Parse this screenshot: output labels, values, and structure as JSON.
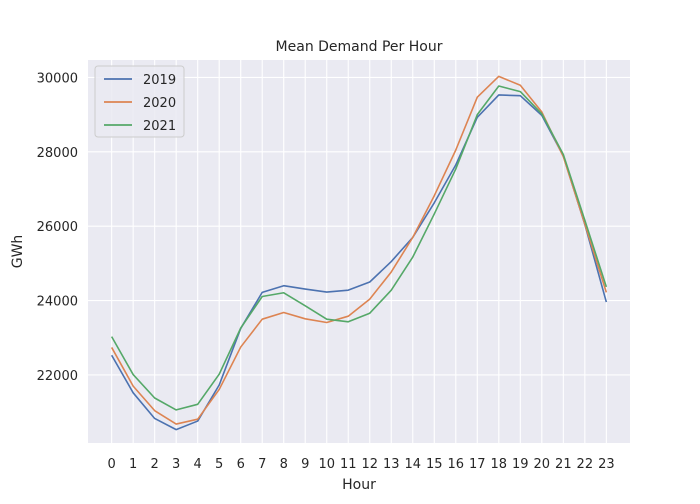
{
  "chart_data": {
    "type": "line",
    "title": "Mean Demand Per Hour",
    "xlabel": "Hour",
    "ylabel": "GWh",
    "x": [
      0,
      1,
      2,
      3,
      4,
      5,
      6,
      7,
      8,
      9,
      10,
      11,
      12,
      13,
      14,
      15,
      16,
      17,
      18,
      19,
      20,
      21,
      22,
      23
    ],
    "y_ticks": [
      22000,
      24000,
      26000,
      28000,
      30000
    ],
    "ylim": [
      20170,
      30470
    ],
    "xlim": [
      -1.1,
      24.1
    ],
    "grid": true,
    "legend_position": "top-left",
    "background_color": "#eaeaf2",
    "series": [
      {
        "name": "2019",
        "color": "#4c72b0",
        "values": [
          22530,
          21520,
          20830,
          20530,
          20760,
          21730,
          23250,
          24220,
          24400,
          24310,
          24230,
          24280,
          24500,
          25050,
          25700,
          26630,
          27650,
          28930,
          29530,
          29510,
          28980,
          27890,
          26050,
          23960
        ]
      },
      {
        "name": "2020",
        "color": "#dd8452",
        "values": [
          22740,
          21700,
          21040,
          20680,
          20810,
          21610,
          22750,
          23500,
          23680,
          23510,
          23410,
          23580,
          24040,
          24770,
          25700,
          26820,
          28050,
          29470,
          30030,
          29790,
          29070,
          27870,
          26060,
          24220
        ]
      },
      {
        "name": "2021",
        "color": "#55a868",
        "values": [
          23030,
          22010,
          21380,
          21060,
          21210,
          22020,
          23260,
          24110,
          24210,
          23860,
          23500,
          23430,
          23660,
          24280,
          25170,
          26330,
          27540,
          29000,
          29770,
          29620,
          29020,
          27930,
          26160,
          24370
        ]
      }
    ]
  }
}
